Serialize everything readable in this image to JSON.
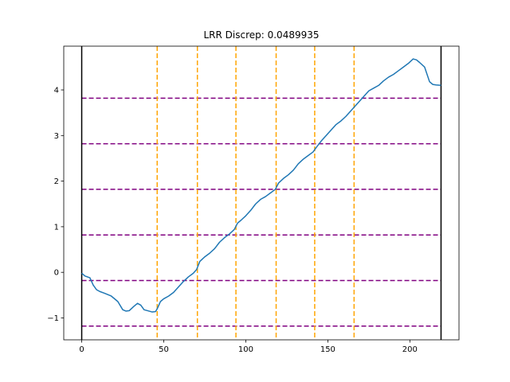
{
  "chart_data": {
    "type": "line",
    "title": "LRR Discrep: 0.0489935",
    "xlabel": "",
    "ylabel": "",
    "xlim": [
      -10.95,
      229.95
    ],
    "ylim": [
      -1.48,
      4.96
    ],
    "x_ticks": [
      0,
      50,
      100,
      150,
      200
    ],
    "y_ticks": [
      -1,
      0,
      1,
      2,
      3,
      4
    ],
    "grid": false,
    "legend": "none",
    "colors": {
      "series": "#1f77b4",
      "horizontal_lines": "#800080",
      "vertical_dashed_lines": "#ffa500",
      "boundary_lines": "#000000"
    },
    "boundary_lines_x": [
      0,
      219
    ],
    "vertical_dashed_lines_x": [
      46,
      70.5,
      94,
      118.5,
      142,
      166
    ],
    "horizontal_lines_y": [
      -1.18,
      -0.18,
      0.82,
      1.82,
      2.82,
      3.82
    ],
    "series": [
      {
        "x": [
          0,
          2,
          5,
          7,
          9,
          11,
          14,
          18,
          22,
          25,
          27,
          29,
          32,
          34,
          36,
          38,
          40,
          43,
          45,
          46,
          48,
          50,
          53,
          56,
          59,
          62,
          65,
          68,
          70,
          72,
          75,
          78,
          81,
          84,
          87,
          90,
          93,
          95,
          97,
          100,
          103,
          106,
          109,
          112,
          115,
          118,
          120,
          123,
          126,
          129,
          132,
          135,
          138,
          141,
          143,
          146,
          149,
          152,
          155,
          158,
          161,
          164,
          166,
          169,
          172,
          175,
          178,
          181,
          184,
          187,
          190,
          193,
          196,
          199,
          202,
          204,
          206,
          209,
          212,
          214,
          216,
          219
        ],
        "y": [
          -0.02,
          -0.08,
          -0.12,
          -0.28,
          -0.38,
          -0.42,
          -0.46,
          -0.52,
          -0.64,
          -0.82,
          -0.85,
          -0.84,
          -0.74,
          -0.68,
          -0.72,
          -0.82,
          -0.84,
          -0.87,
          -0.86,
          -0.8,
          -0.64,
          -0.58,
          -0.52,
          -0.44,
          -0.32,
          -0.2,
          -0.1,
          -0.02,
          0.06,
          0.24,
          0.34,
          0.42,
          0.52,
          0.66,
          0.76,
          0.84,
          0.94,
          1.08,
          1.14,
          1.24,
          1.36,
          1.5,
          1.6,
          1.66,
          1.74,
          1.82,
          1.96,
          2.06,
          2.14,
          2.24,
          2.38,
          2.48,
          2.56,
          2.64,
          2.74,
          2.88,
          3.0,
          3.12,
          3.24,
          3.32,
          3.42,
          3.54,
          3.62,
          3.74,
          3.86,
          3.98,
          4.04,
          4.1,
          4.2,
          4.28,
          4.34,
          4.42,
          4.5,
          4.58,
          4.68,
          4.66,
          4.6,
          4.5,
          4.18,
          4.12,
          4.11,
          4.1
        ]
      }
    ]
  }
}
